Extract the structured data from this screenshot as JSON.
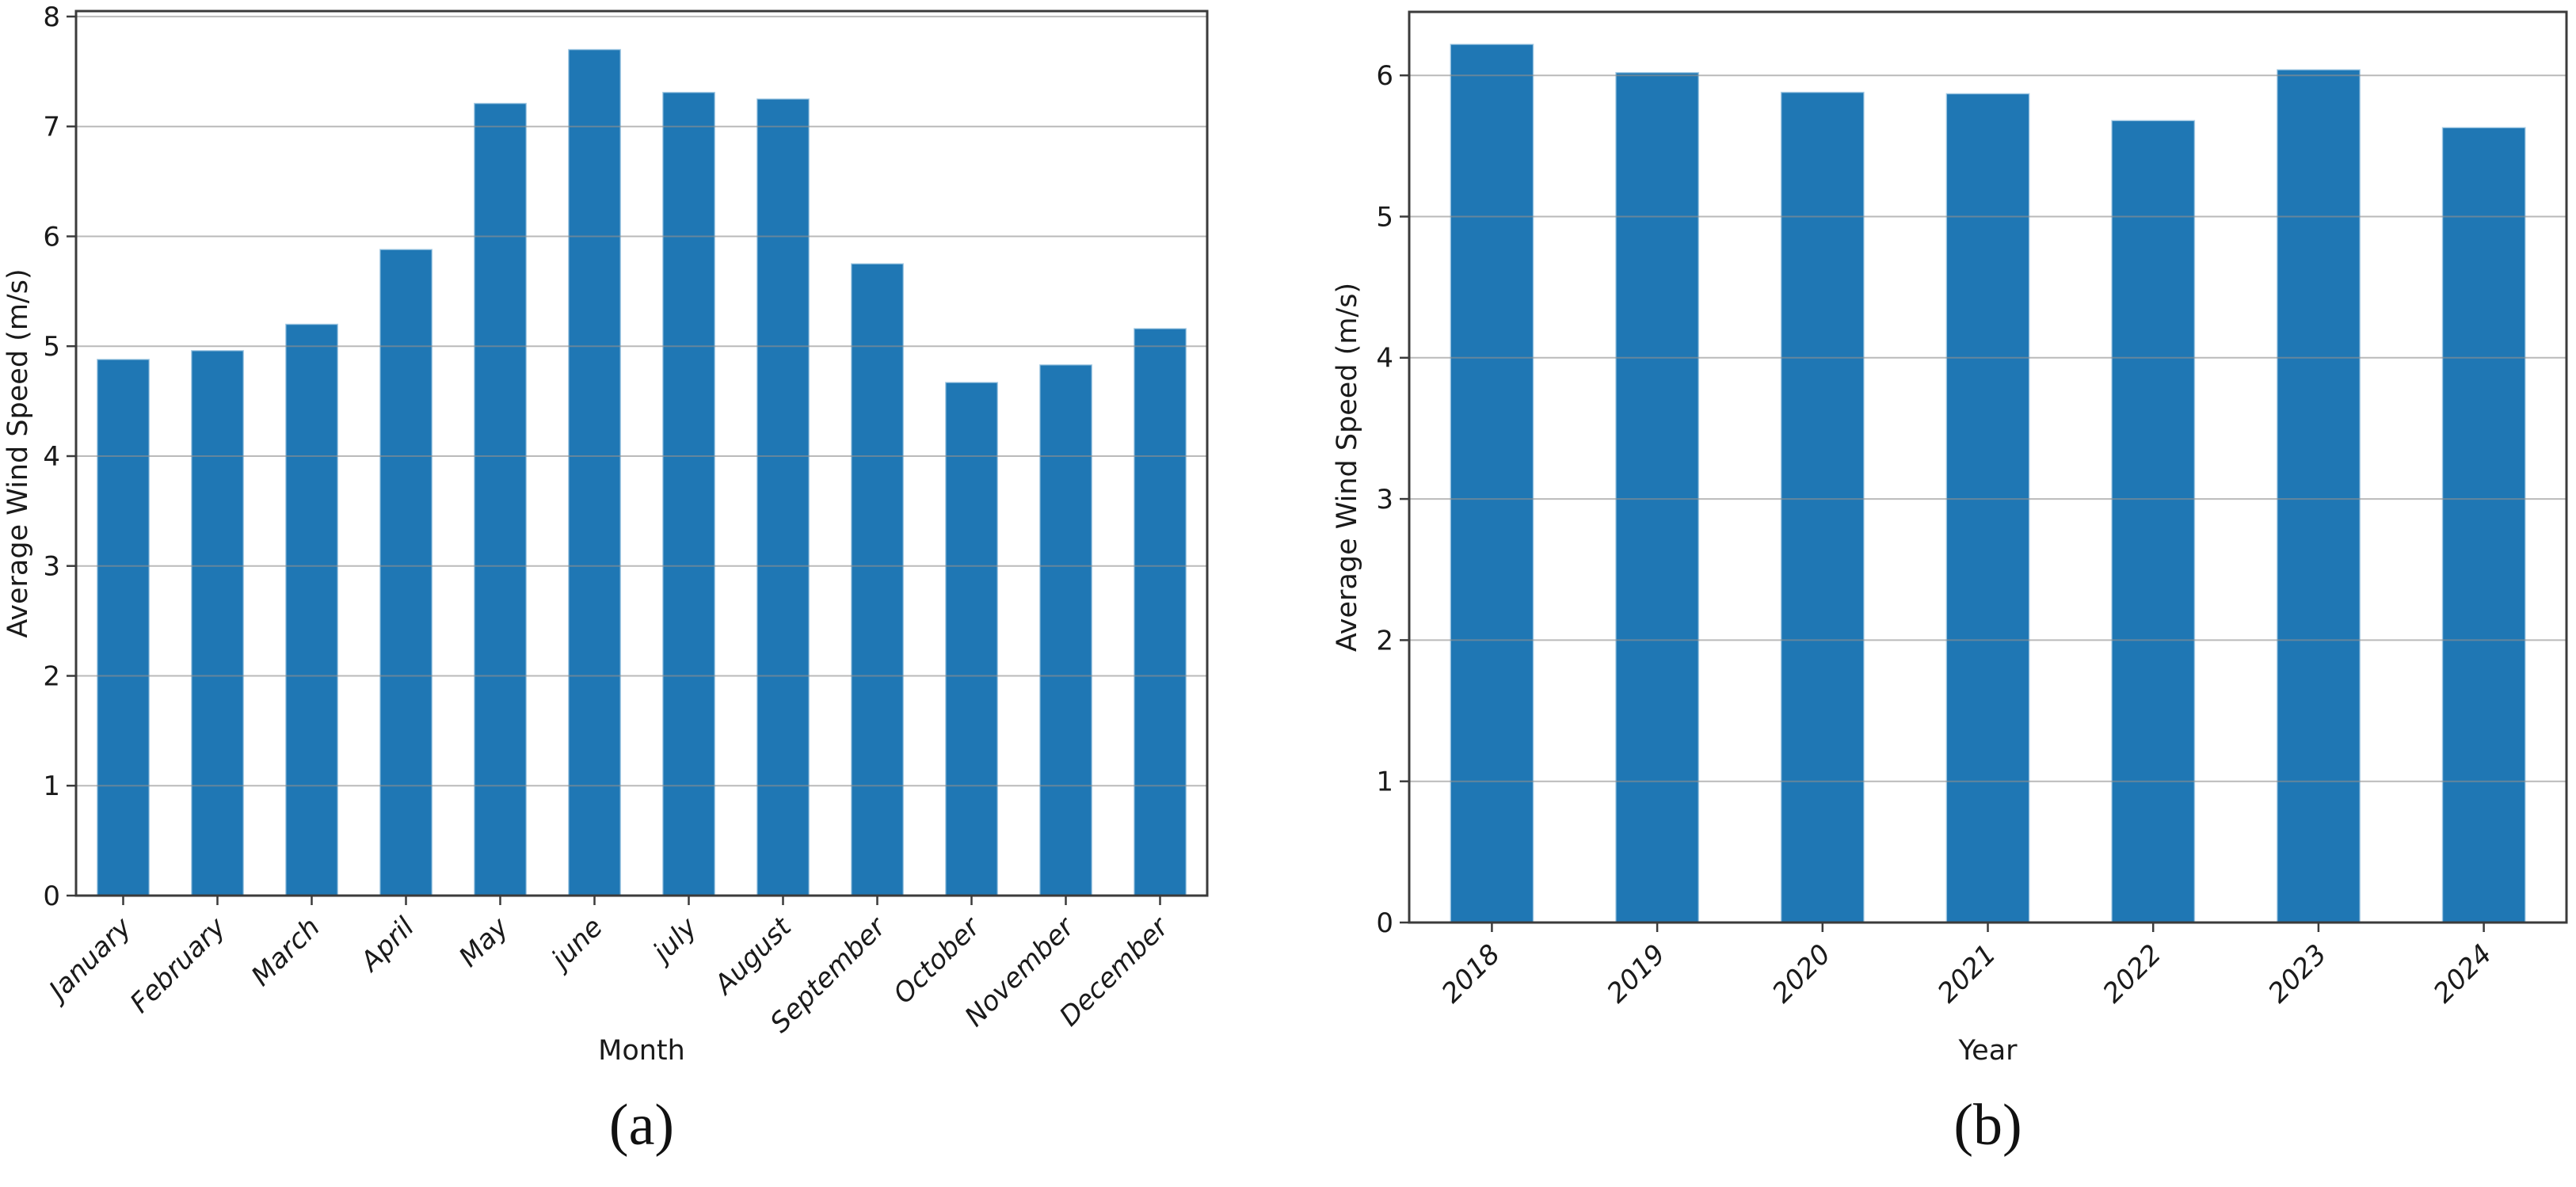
{
  "figure": {
    "description": "Two-panel bar chart figure of average wind speed",
    "background": "#ffffff"
  },
  "style": {
    "bar_color": "#1f77b4",
    "bar_edge_color": "#a3c9e4",
    "grid_color": "#8f8f8f",
    "spine_color": "#3b3b3b",
    "tick_color": "#3b3b3b",
    "text_color": "#1a1a1a"
  },
  "chart_data": [
    {
      "type": "bar",
      "caption": "(a)",
      "xlabel": "Month",
      "ylabel": "Average Wind Speed (m/s)",
      "categories": [
        "January",
        "February",
        "March",
        "April",
        "May",
        "june",
        "july",
        "August",
        "September",
        "October",
        "November",
        "December"
      ],
      "values": [
        4.88,
        4.96,
        5.2,
        5.88,
        7.21,
        7.7,
        7.31,
        7.25,
        5.75,
        4.67,
        4.83,
        5.16
      ],
      "ylim": [
        0,
        8.05
      ],
      "yticks": [
        0,
        1,
        2,
        3,
        4,
        5,
        6,
        7,
        8
      ],
      "grid": true,
      "grid_on_top": true,
      "legend": null
    },
    {
      "type": "bar",
      "caption": "(b)",
      "xlabel": "Year",
      "ylabel": "Average Wind Speed (m/s)",
      "categories": [
        "2018",
        "2019",
        "2020",
        "2021",
        "2022",
        "2023",
        "2024"
      ],
      "values": [
        6.22,
        6.02,
        5.88,
        5.87,
        5.68,
        6.04,
        5.63
      ],
      "ylim": [
        0,
        6.45
      ],
      "yticks": [
        0,
        1,
        2,
        3,
        4,
        5,
        6
      ],
      "grid": true,
      "grid_on_top": true,
      "legend": null
    }
  ]
}
